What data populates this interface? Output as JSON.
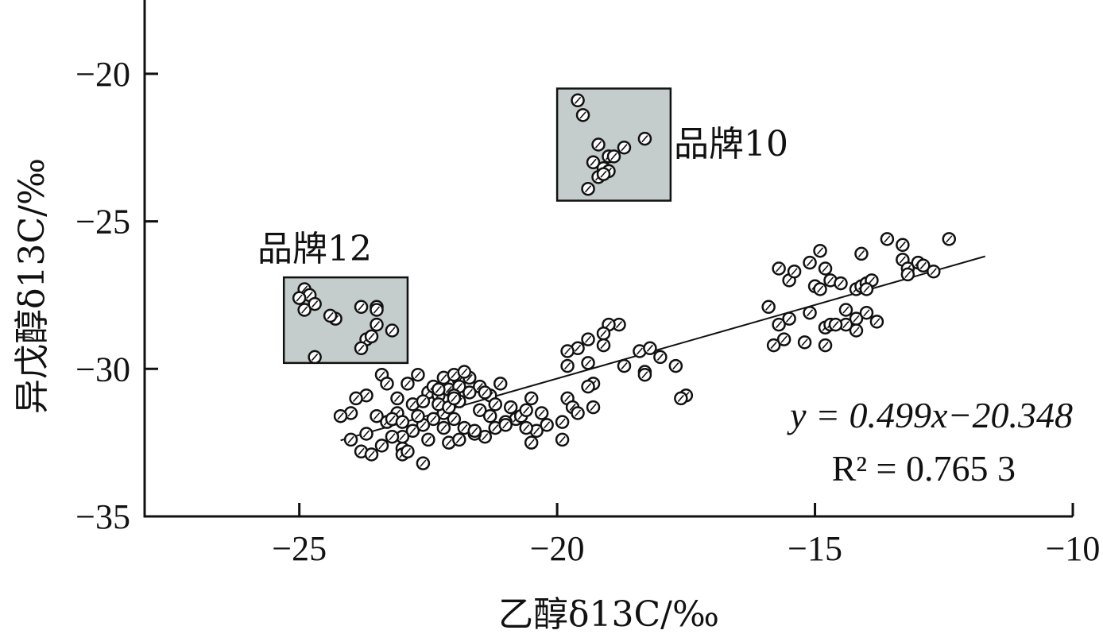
{
  "chart_data": {
    "type": "scatter",
    "xlabel": "乙醇δ13C/‰",
    "ylabel": "异戊醇δ13C/‰",
    "xlim": [
      -28.0,
      -10.0
    ],
    "ylim": [
      -35.0,
      -17.5
    ],
    "xticks": [
      -25,
      -20,
      -15,
      -10
    ],
    "yticks": [
      -20,
      -25,
      -30,
      -35
    ],
    "xtick_labels": [
      "−25",
      "−20",
      "−15",
      "−10"
    ],
    "ytick_labels": [
      "−20",
      "−25",
      "−30",
      "−35"
    ],
    "grid": false,
    "highlight_color": "#c4cccc",
    "regression": {
      "slope": 0.499,
      "intercept": -20.348,
      "x_range": [
        -24.2,
        -11.7
      ],
      "equation_text": "y = 0.499x−20.348",
      "r2_text": "R² = 0.765 3"
    },
    "groups": [
      {
        "label": "品牌10",
        "box": {
          "x": [
            -20.0,
            -17.8
          ],
          "y": [
            -24.3,
            -20.5
          ]
        },
        "points": [
          [
            -19.6,
            -20.9
          ],
          [
            -19.5,
            -21.4
          ],
          [
            -18.3,
            -22.2
          ],
          [
            -18.7,
            -22.5
          ],
          [
            -19.2,
            -22.4
          ],
          [
            -19.0,
            -22.8
          ],
          [
            -18.9,
            -22.8
          ],
          [
            -19.3,
            -23.0
          ],
          [
            -19.1,
            -23.2
          ],
          [
            -19.0,
            -23.3
          ],
          [
            -19.2,
            -23.5
          ],
          [
            -19.1,
            -23.4
          ],
          [
            -19.4,
            -23.9
          ]
        ]
      },
      {
        "label": "品牌12",
        "box": {
          "x": [
            -25.3,
            -22.9
          ],
          "y": [
            -29.8,
            -26.9
          ]
        },
        "points": [
          [
            -24.9,
            -27.3
          ],
          [
            -24.8,
            -27.5
          ],
          [
            -25.0,
            -27.6
          ],
          [
            -24.7,
            -27.8
          ],
          [
            -24.9,
            -28.0
          ],
          [
            -24.3,
            -28.3
          ],
          [
            -24.4,
            -28.2
          ],
          [
            -23.8,
            -27.9
          ],
          [
            -23.5,
            -27.9
          ],
          [
            -23.5,
            -28.0
          ],
          [
            -23.5,
            -28.5
          ],
          [
            -23.7,
            -29.0
          ],
          [
            -23.6,
            -28.9
          ],
          [
            -23.2,
            -28.7
          ],
          [
            -23.8,
            -29.3
          ],
          [
            -24.7,
            -29.6
          ]
        ]
      }
    ],
    "points": [
      [
        -15.7,
        -26.6
      ],
      [
        -15.5,
        -27.0
      ],
      [
        -15.4,
        -26.7
      ],
      [
        -15.1,
        -26.4
      ],
      [
        -14.9,
        -26.0
      ],
      [
        -14.8,
        -26.6
      ],
      [
        -14.7,
        -27.0
      ],
      [
        -15.0,
        -27.2
      ],
      [
        -14.9,
        -27.3
      ],
      [
        -14.5,
        -27.1
      ],
      [
        -14.2,
        -27.3
      ],
      [
        -14.1,
        -27.2
      ],
      [
        -14.0,
        -27.1
      ],
      [
        -13.9,
        -27.0
      ],
      [
        -13.6,
        -25.6
      ],
      [
        -13.3,
        -25.8
      ],
      [
        -13.3,
        -26.3
      ],
      [
        -13.0,
        -26.4
      ],
      [
        -12.9,
        -26.5
      ],
      [
        -12.7,
        -26.7
      ],
      [
        -13.2,
        -26.6
      ],
      [
        -13.2,
        -26.8
      ],
      [
        -12.4,
        -25.6
      ],
      [
        -14.1,
        -26.1
      ],
      [
        -14.0,
        -27.3
      ],
      [
        -15.9,
        -27.9
      ],
      [
        -15.7,
        -28.5
      ],
      [
        -15.5,
        -28.3
      ],
      [
        -14.8,
        -28.6
      ],
      [
        -14.7,
        -28.5
      ],
      [
        -14.4,
        -28.0
      ],
      [
        -14.2,
        -28.3
      ],
      [
        -14.0,
        -28.1
      ],
      [
        -13.8,
        -28.4
      ],
      [
        -14.4,
        -28.5
      ],
      [
        -14.2,
        -28.7
      ],
      [
        -15.1,
        -28.1
      ],
      [
        -15.6,
        -29.0
      ],
      [
        -15.8,
        -29.2
      ],
      [
        -15.2,
        -29.1
      ],
      [
        -14.8,
        -29.2
      ],
      [
        -14.6,
        -28.5
      ],
      [
        -18.8,
        -28.5
      ],
      [
        -19.0,
        -28.5
      ],
      [
        -19.1,
        -28.8
      ],
      [
        -19.4,
        -29.0
      ],
      [
        -19.6,
        -29.3
      ],
      [
        -19.8,
        -29.4
      ],
      [
        -19.1,
        -29.2
      ],
      [
        -18.4,
        -29.4
      ],
      [
        -18.2,
        -29.3
      ],
      [
        -18.0,
        -29.6
      ],
      [
        -18.7,
        -29.9
      ],
      [
        -18.3,
        -30.1
      ],
      [
        -18.3,
        -30.2
      ],
      [
        -17.7,
        -29.9
      ],
      [
        -17.5,
        -30.9
      ],
      [
        -17.6,
        -31.0
      ],
      [
        -19.8,
        -29.9
      ],
      [
        -19.4,
        -29.8
      ],
      [
        -19.3,
        -30.5
      ],
      [
        -19.4,
        -30.6
      ],
      [
        -19.8,
        -31.0
      ],
      [
        -19.7,
        -31.3
      ],
      [
        -19.6,
        -31.5
      ],
      [
        -19.9,
        -31.8
      ],
      [
        -19.3,
        -31.3
      ],
      [
        -19.9,
        -32.4
      ],
      [
        -23.4,
        -30.2
      ],
      [
        -23.3,
        -30.5
      ],
      [
        -23.7,
        -30.9
      ],
      [
        -23.9,
        -31.0
      ],
      [
        -24.0,
        -31.5
      ],
      [
        -23.5,
        -31.6
      ],
      [
        -23.3,
        -31.8
      ],
      [
        -23.1,
        -31.5
      ],
      [
        -22.8,
        -31.2
      ],
      [
        -22.9,
        -30.5
      ],
      [
        -22.7,
        -30.2
      ],
      [
        -22.5,
        -30.8
      ],
      [
        -22.3,
        -30.9
      ],
      [
        -22.1,
        -30.7
      ],
      [
        -21.9,
        -30.4
      ],
      [
        -21.7,
        -30.3
      ],
      [
        -21.5,
        -30.6
      ],
      [
        -21.3,
        -30.9
      ],
      [
        -21.1,
        -30.5
      ],
      [
        -20.9,
        -31.3
      ],
      [
        -20.5,
        -31.0
      ],
      [
        -20.3,
        -31.5
      ],
      [
        -20.2,
        -31.9
      ],
      [
        -20.4,
        -32.1
      ],
      [
        -20.6,
        -32.0
      ],
      [
        -20.8,
        -31.7
      ],
      [
        -21.0,
        -31.8
      ],
      [
        -21.2,
        -32.0
      ],
      [
        -21.4,
        -32.3
      ],
      [
        -21.6,
        -32.2
      ],
      [
        -21.8,
        -32.0
      ],
      [
        -22.0,
        -31.7
      ],
      [
        -22.2,
        -31.5
      ],
      [
        -22.4,
        -31.7
      ],
      [
        -22.6,
        -31.9
      ],
      [
        -22.8,
        -32.1
      ],
      [
        -23.0,
        -32.3
      ],
      [
        -23.0,
        -32.7
      ],
      [
        -23.0,
        -32.9
      ],
      [
        -22.9,
        -32.8
      ],
      [
        -22.5,
        -32.4
      ],
      [
        -22.1,
        -32.5
      ],
      [
        -21.9,
        -32.4
      ],
      [
        -21.6,
        -32.1
      ],
      [
        -24.0,
        -32.4
      ],
      [
        -23.8,
        -32.8
      ],
      [
        -23.6,
        -32.9
      ],
      [
        -23.4,
        -32.6
      ],
      [
        -23.2,
        -32.3
      ],
      [
        -22.6,
        -33.2
      ],
      [
        -24.2,
        -31.6
      ],
      [
        -23.1,
        -31.0
      ],
      [
        -22.3,
        -31.2
      ],
      [
        -22.1,
        -31.3
      ],
      [
        -21.9,
        -31.1
      ],
      [
        -21.9,
        -30.6
      ],
      [
        -22.2,
        -30.3
      ],
      [
        -22.0,
        -30.2
      ],
      [
        -21.8,
        -30.1
      ],
      [
        -22.0,
        -30.9
      ],
      [
        -21.5,
        -31.4
      ],
      [
        -21.3,
        -31.6
      ],
      [
        -21.0,
        -31.9
      ],
      [
        -20.7,
        -31.6
      ],
      [
        -20.5,
        -32.5
      ],
      [
        -22.4,
        -30.6
      ],
      [
        -22.6,
        -31.1
      ],
      [
        -23.7,
        -32.2
      ],
      [
        -23.2,
        -31.7
      ],
      [
        -22.2,
        -32.0
      ],
      [
        -21.2,
        -31.2
      ],
      [
        -21.4,
        -30.8
      ],
      [
        -20.6,
        -31.4
      ],
      [
        -22.7,
        -31.6
      ],
      [
        -22.0,
        -31.0
      ],
      [
        -21.7,
        -30.8
      ],
      [
        -23.0,
        -31.8
      ],
      [
        -22.3,
        -30.7
      ]
    ]
  }
}
